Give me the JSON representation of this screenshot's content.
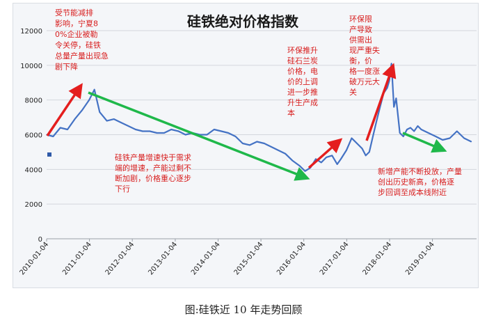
{
  "caption": "图:硅铁近 10 年走势回顾",
  "chart_data": {
    "type": "line",
    "title": "硅铁绝对价格指数",
    "xlabel": "",
    "ylabel": "",
    "ylim": [
      0,
      12000
    ],
    "yticks": [
      0,
      2000,
      4000,
      6000,
      8000,
      10000,
      12000
    ],
    "xticks": [
      "2010-01-04",
      "2011-01-04",
      "2012-01-04",
      "2013-01-04",
      "2014-01-04",
      "2015-01-04",
      "2016-01-04",
      "2017-01-04",
      "2018-01-04",
      "2019-01-04"
    ],
    "grid": true,
    "line_color": "#4472c4",
    "series": [
      {
        "name": "",
        "x": [
          "2010-01-04",
          "2010-03-01",
          "2010-05-01",
          "2010-07-01",
          "2010-09-01",
          "2010-11-01",
          "2011-01-01",
          "2011-02-15",
          "2011-04-01",
          "2011-06-01",
          "2011-08-01",
          "2011-10-01",
          "2011-12-01",
          "2012-02-01",
          "2012-04-01",
          "2012-06-01",
          "2012-08-01",
          "2012-10-01",
          "2012-12-01",
          "2013-02-01",
          "2013-04-01",
          "2013-06-01",
          "2013-08-01",
          "2013-10-01",
          "2013-12-01",
          "2014-02-01",
          "2014-04-01",
          "2014-06-01",
          "2014-08-01",
          "2014-10-01",
          "2014-12-01",
          "2015-02-01",
          "2015-04-01",
          "2015-06-01",
          "2015-08-01",
          "2015-10-01",
          "2015-12-01",
          "2016-01-15",
          "2016-03-01",
          "2016-04-15",
          "2016-06-01",
          "2016-07-15",
          "2016-09-01",
          "2016-10-15",
          "2016-11-15",
          "2017-01-01",
          "2017-02-15",
          "2017-04-01",
          "2017-05-15",
          "2017-06-15",
          "2017-07-15",
          "2017-08-15",
          "2017-09-15",
          "2017-10-15",
          "2017-11-15",
          "2017-12-15",
          "2018-01-01",
          "2018-01-20",
          "2018-02-10",
          "2018-03-01",
          "2018-04-01",
          "2018-05-01",
          "2018-06-01",
          "2018-07-01",
          "2018-08-01",
          "2018-09-01",
          "2018-10-01",
          "2018-12-01",
          "2019-02-01",
          "2019-04-01",
          "2019-06-01",
          "2019-08-01",
          "2019-10-01",
          "2019-12-01"
        ],
        "values": [
          6000,
          5900,
          6400,
          6300,
          6900,
          7400,
          8000,
          8600,
          7300,
          6800,
          6900,
          6700,
          6500,
          6300,
          6200,
          6200,
          6100,
          6100,
          6300,
          6200,
          6000,
          6100,
          6000,
          6000,
          6300,
          6200,
          6100,
          5900,
          5500,
          5400,
          5600,
          5500,
          5300,
          5100,
          4900,
          4500,
          4200,
          3900,
          4100,
          4600,
          4400,
          4700,
          4800,
          4300,
          4600,
          5100,
          5800,
          5500,
          5200,
          4800,
          5000,
          5900,
          6800,
          7600,
          8400,
          8700,
          9100,
          10100,
          7600,
          8100,
          6100,
          5900,
          6300,
          6400,
          6200,
          6500,
          6300,
          6100,
          5900,
          5700,
          5800,
          6200,
          5800,
          5600
        ]
      }
    ],
    "annotations": [
      "受节能减排影响，宁夏80%企业被勒令关停，硅铁总量产量出现急剧下降",
      "硅铁产量增速快于需求端的增速，产能过剩不断加剧，价格重心逐步下行",
      "环保推升硅石兰炭价格，电价的上调进一步推升生产成本",
      "环保限产导致供需出现严重失衡，价格一度涨破万元大关",
      "新增产能不断投放，产量创出历史新高，价格逐步回调至成本线附近"
    ]
  }
}
